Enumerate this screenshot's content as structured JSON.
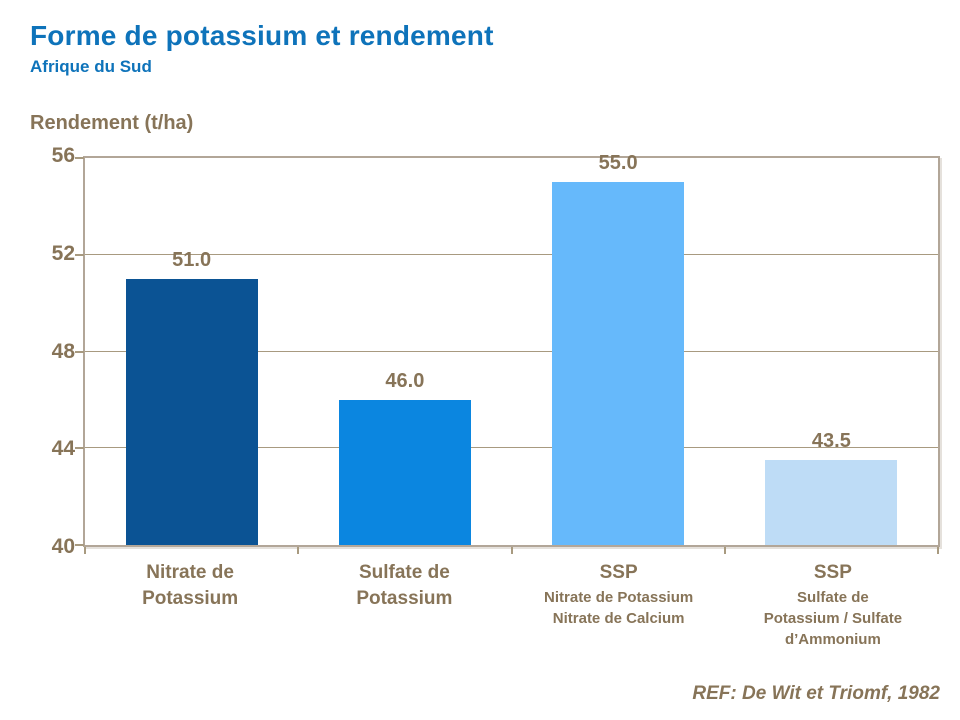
{
  "header": {
    "title": "Forme de potassium et rendement",
    "subtitle": "Afrique du Sud"
  },
  "footer": {
    "ref": "REF: De Wit et Triomf, 1982"
  },
  "colors": {
    "title_blue": "#0e73ba",
    "label_brown": "#877458",
    "gridline_tan": "#a89a80",
    "plot_border_tan": "#b2a698",
    "bar_colors": [
      "#0b5394",
      "#0b86e0",
      "#66b9fb",
      "#bedcf6"
    ]
  },
  "chart_data": {
    "type": "bar",
    "title": "Forme de potassium et rendement",
    "subtitle": "Afrique du Sud",
    "ylabel": "Rendement (t/ha)",
    "xlabel": "",
    "ylim": [
      40,
      56
    ],
    "yticks": [
      40,
      44,
      48,
      52,
      56
    ],
    "grid": true,
    "legend": "none",
    "categories": [
      {
        "main": "Nitrate de\nPotassium",
        "sub": ""
      },
      {
        "main": "Sulfate de\nPotassium",
        "sub": ""
      },
      {
        "main": "SSP",
        "sub": "Nitrate de Potassium\nNitrate de Calcium"
      },
      {
        "main": "SSP",
        "sub": "Sulfate de\nPotassium / Sulfate\nd’Ammonium"
      }
    ],
    "values": [
      51.0,
      46.0,
      55.0,
      43.5
    ],
    "value_labels": [
      "51.0",
      "46.0",
      "55.0",
      "43.5"
    ],
    "annotation": "REF: De Wit et Triomf, 1982"
  }
}
